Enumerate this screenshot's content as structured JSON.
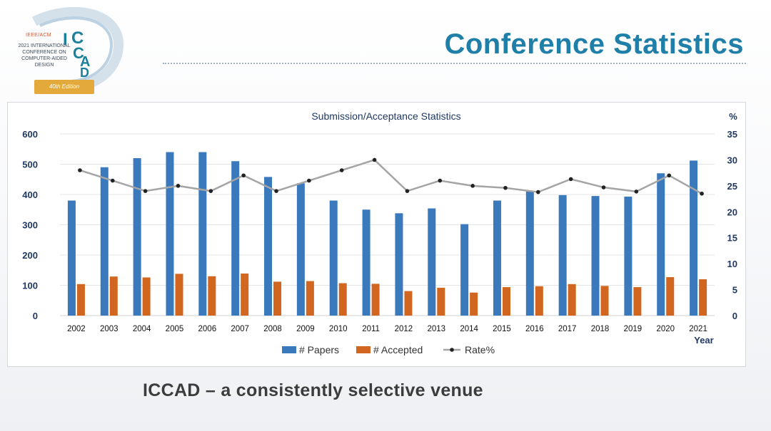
{
  "logo": {
    "org": "IEEE/ACM",
    "conference_lines": [
      "2021 INTERNATIONAL",
      "CONFERENCE ON",
      "COMPUTER-AIDED",
      "DESIGN"
    ],
    "edition": "40th Edition",
    "letters": [
      "I",
      "C",
      "C",
      "A",
      "D"
    ]
  },
  "header": {
    "title": "Conference Statistics"
  },
  "subtitle": "ICCAD – a consistently selective venue",
  "colors": {
    "papers": "#3b79bd",
    "accepted": "#d0661f",
    "rate_line": "#a5a5a5",
    "rate_marker": "#222222",
    "axis_text": "#1f3864"
  },
  "chart_data": {
    "type": "bar",
    "title": "Submission/Acceptance Statistics",
    "xlabel": "Year",
    "ylabel": "",
    "y2label": "%",
    "ylim": [
      0,
      600
    ],
    "y_ticks": [
      0,
      100,
      200,
      300,
      400,
      500,
      600
    ],
    "y2lim": [
      0,
      35
    ],
    "y2_ticks": [
      0,
      5,
      10,
      15,
      20,
      25,
      30,
      35
    ],
    "categories": [
      "2002",
      "2003",
      "2004",
      "2005",
      "2006",
      "2007",
      "2008",
      "2009",
      "2010",
      "2011",
      "2012",
      "2013",
      "2014",
      "2015",
      "2016",
      "2017",
      "2018",
      "2019",
      "2020",
      "2021"
    ],
    "series": [
      {
        "name": "# Papers",
        "type": "bar",
        "axis": "left",
        "values": [
          380,
          490,
          520,
          540,
          540,
          510,
          458,
          437,
          380,
          350,
          338,
          354,
          302,
          380,
          410,
          398,
          395,
          393,
          470,
          512
        ]
      },
      {
        "name": "# Accepted",
        "type": "bar",
        "axis": "left",
        "values": [
          104,
          129,
          126,
          138,
          130,
          139,
          112,
          114,
          107,
          105,
          81,
          92,
          76,
          94,
          97,
          104,
          98,
          94,
          127,
          120
        ]
      },
      {
        "name": "Rate%",
        "type": "line",
        "axis": "right",
        "values": [
          28,
          26,
          24,
          25,
          24,
          27,
          24,
          26,
          28,
          30,
          24,
          26,
          25,
          24.6,
          23.8,
          26.3,
          24.7,
          23.9,
          27,
          23.5
        ]
      }
    ],
    "legend": "bottom",
    "grid": true
  }
}
